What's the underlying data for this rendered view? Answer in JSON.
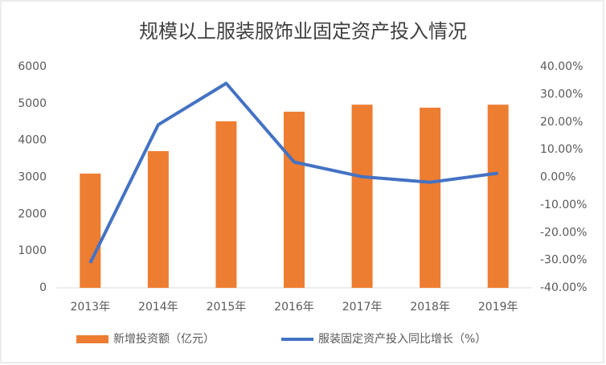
{
  "chart_data": {
    "type": "bar",
    "title": "规模以上服装服饰业固定资产投入情况",
    "categories": [
      "2013年",
      "2014年",
      "2015年",
      "2016年",
      "2017年",
      "2018年",
      "2019年"
    ],
    "series": [
      {
        "name": "新增投资额（亿元）",
        "type": "bar",
        "color": "#ed7d31",
        "values": [
          3100,
          3710,
          4520,
          4780,
          4970,
          4890,
          4970
        ]
      },
      {
        "name": "服装固定资产投入同比增长（%）",
        "type": "line",
        "axis": "y2",
        "color": "#4472c4",
        "values": [
          -31,
          19,
          34,
          5.5,
          0.2,
          -1.8,
          1.5
        ]
      }
    ],
    "ylim": [
      0,
      6000
    ],
    "yticks": [
      0,
      1000,
      2000,
      3000,
      4000,
      5000,
      6000
    ],
    "y2lim": [
      -40,
      40
    ],
    "y2ticks": [
      {
        "value": -40,
        "label": "-40.00%"
      },
      {
        "value": -30,
        "label": "-30.00%"
      },
      {
        "value": -20,
        "label": "-20.00%"
      },
      {
        "value": -10,
        "label": "-10.00%"
      },
      {
        "value": 0,
        "label": "0.00%"
      },
      {
        "value": 10,
        "label": "10.00%"
      },
      {
        "value": 20,
        "label": "20.00%"
      },
      {
        "value": 30,
        "label": "30.00%"
      },
      {
        "value": 40,
        "label": "40.00%"
      }
    ],
    "grid": false,
    "legend": "bottom"
  }
}
